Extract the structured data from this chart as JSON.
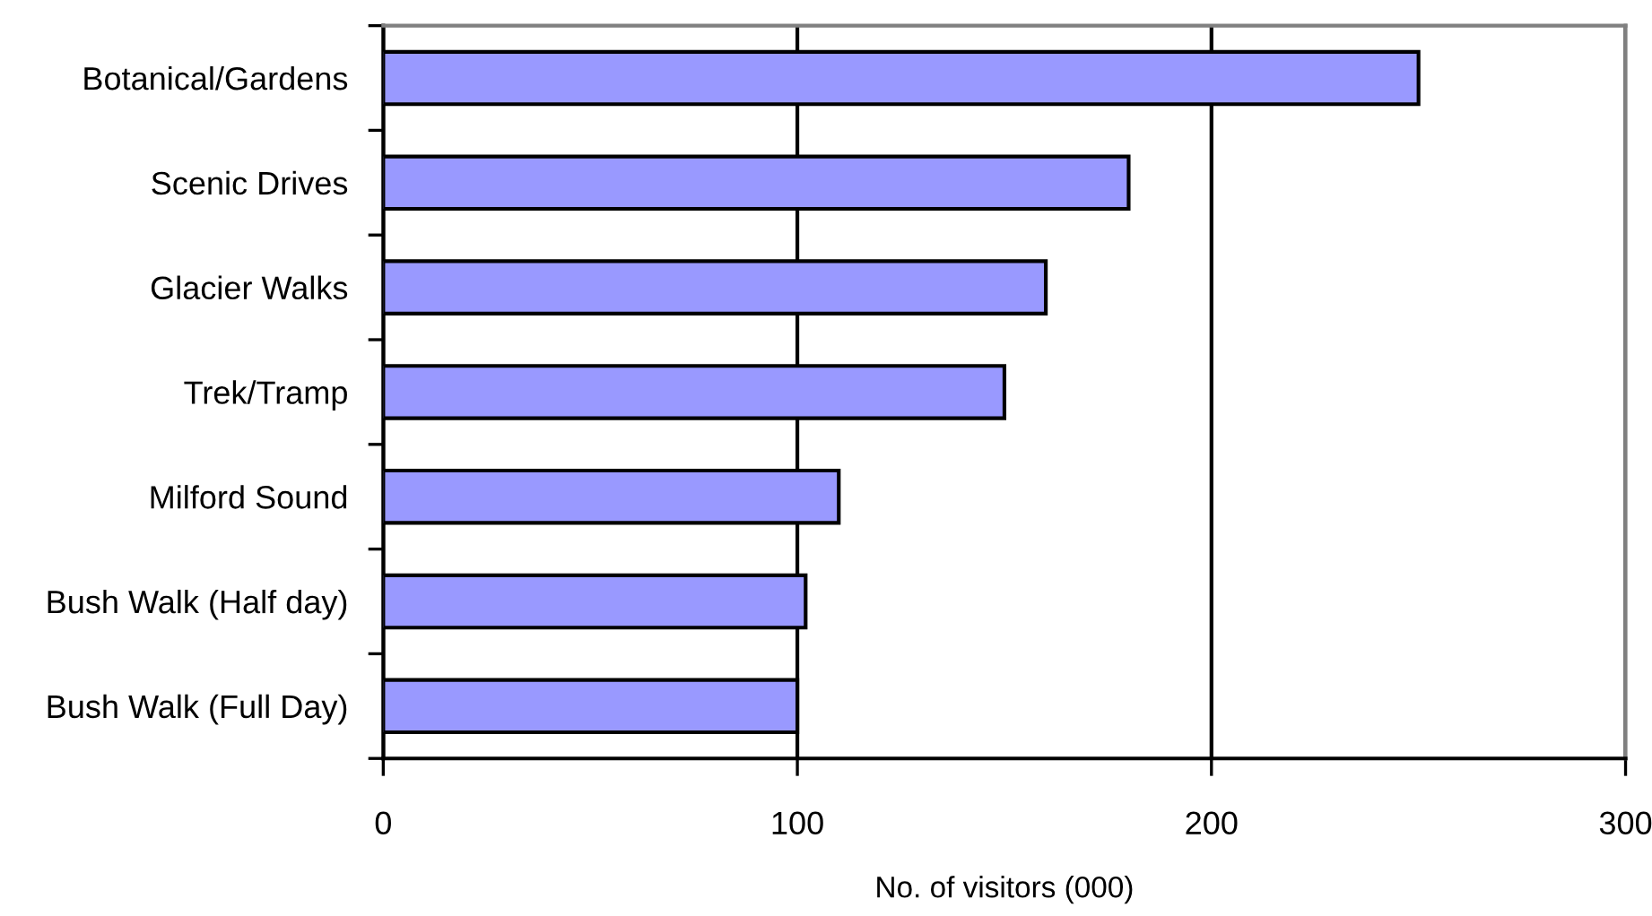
{
  "chart_data": {
    "type": "bar",
    "orientation": "horizontal",
    "xlabel": "No. of visitors (000)",
    "categories": [
      "Botanical/Gardens",
      "Scenic Drives",
      "Glacier Walks",
      "Trek/Tramp",
      "Milford Sound",
      "Bush Walk (Half day)",
      "Bush Walk (Full Day)"
    ],
    "values": [
      250,
      180,
      160,
      150,
      110,
      102,
      100
    ],
    "color": "#9999ff",
    "xlim": [
      0,
      300
    ],
    "xticks": [
      0,
      100,
      200,
      300
    ],
    "grid": "x"
  }
}
